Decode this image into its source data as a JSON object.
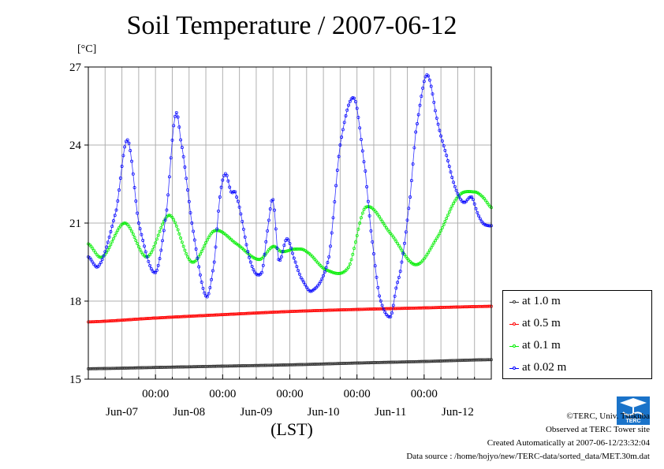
{
  "title": "Soil Temperature / 2007-06-12",
  "unit_label": "[°C]",
  "x_axis_label": "(LST)",
  "legend": [
    {
      "label": "at 1.0 m",
      "color": "#333333"
    },
    {
      "label": "at 0.5 m",
      "color": "#ff0000"
    },
    {
      "label": "at 0.1 m",
      "color": "#00ee00"
    },
    {
      "label": "at 0.02 m",
      "color": "#0000ff"
    }
  ],
  "footer": {
    "copyright": "©TERC, Univ. Tsukuba",
    "observed": "Observed at TERC Tower site",
    "created": "Created Automatically at 2007-06-12/23:32:04",
    "source": "Data source : /home/hojyo/new/TERC-data/sorted_data/MET.30m.dat"
  },
  "logo_text": "TERC",
  "chart_data": {
    "type": "line",
    "title": "Soil Temperature / 2007-06-12",
    "ylabel": "[°C]",
    "xlabel": "(LST)",
    "ylim": [
      15,
      27
    ],
    "yticks": [
      15,
      18,
      21,
      24,
      27
    ],
    "xlim": [
      0,
      144
    ],
    "time_tick_labels": [
      "00:00",
      "00:00",
      "00:00",
      "00:00",
      "00:00"
    ],
    "date_labels": [
      "Jun-07",
      "Jun-08",
      "Jun-09",
      "Jun-10",
      "Jun-11",
      "Jun-12"
    ],
    "grid": true,
    "legend_position": "right",
    "series": [
      {
        "name": "at 1.0 m",
        "color": "#333333",
        "x": [
          0,
          24,
          48,
          72,
          96,
          120,
          144
        ],
        "y": [
          15.4,
          15.45,
          15.5,
          15.55,
          15.62,
          15.68,
          15.75
        ]
      },
      {
        "name": "at 0.5 m",
        "color": "#ff0000",
        "x": [
          0,
          24,
          48,
          72,
          96,
          120,
          144
        ],
        "y": [
          17.2,
          17.35,
          17.48,
          17.6,
          17.68,
          17.74,
          17.8
        ]
      },
      {
        "name": "at 0.1 m",
        "color": "#00ee00",
        "x": [
          0,
          5,
          13,
          21,
          29,
          37,
          45,
          53,
          61,
          66,
          69,
          74,
          78,
          85,
          93,
          99,
          108,
          117,
          125,
          132,
          138,
          141,
          144
        ],
        "y": [
          20.2,
          19.7,
          21.0,
          19.7,
          21.3,
          19.5,
          20.7,
          20.2,
          19.6,
          20.1,
          19.9,
          20.0,
          19.9,
          19.2,
          19.3,
          21.6,
          20.6,
          19.4,
          20.5,
          22.0,
          22.2,
          22.0,
          21.6
        ]
      },
      {
        "name": "at 0.02 m",
        "color": "#0000ff",
        "x": [
          0,
          4,
          10,
          14,
          18,
          24,
          28,
          31,
          33,
          37,
          42,
          45,
          47,
          49,
          51,
          53,
          58,
          62,
          64,
          66,
          68,
          71,
          74,
          76,
          80,
          86,
          90,
          95,
          99,
          101,
          104,
          108,
          110,
          112,
          115,
          117,
          121,
          125,
          128,
          131,
          134,
          137,
          139,
          141,
          143,
          144
        ],
        "y": [
          19.7,
          19.4,
          21.5,
          24.2,
          21.0,
          19.1,
          21.5,
          25.1,
          24.2,
          21.0,
          18.2,
          19.5,
          22.0,
          22.9,
          22.2,
          22.0,
          19.5,
          19.1,
          20.7,
          21.9,
          19.6,
          20.4,
          19.5,
          18.9,
          18.4,
          19.7,
          24.0,
          25.8,
          23.0,
          20.7,
          18.2,
          17.4,
          18.5,
          19.5,
          22.0,
          24.5,
          26.7,
          24.8,
          23.6,
          22.4,
          21.8,
          22.0,
          21.4,
          21.0,
          20.9,
          20.9
        ]
      }
    ]
  }
}
